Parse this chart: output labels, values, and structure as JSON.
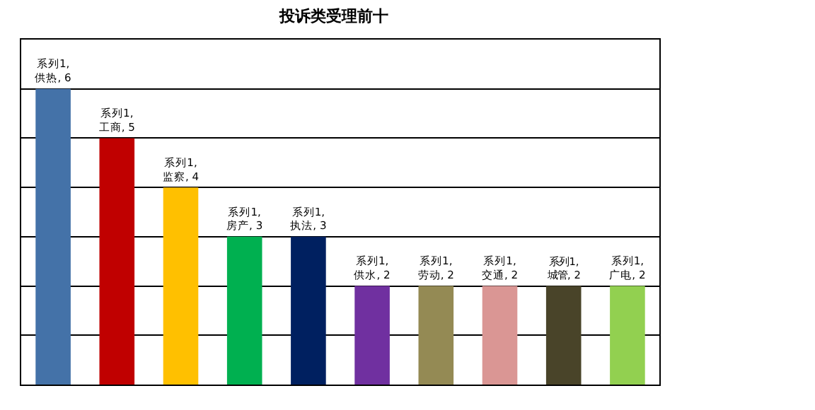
{
  "chart_data": {
    "type": "bar",
    "title": "投诉类受理前十",
    "categories": [
      null,
      null,
      null,
      null,
      null,
      null,
      null,
      null,
      null,
      null
    ],
    "values": [
      6,
      5,
      4,
      3,
      3,
      2,
      2,
      2,
      2,
      2
    ],
    "colors": [
      "#4472a8",
      "#c00000",
      "#ffc000",
      "#00b050",
      "#002060",
      "#7030a0",
      "#948a54",
      "#da9694",
      "#494429",
      "#92d050"
    ],
    "value_labels": [
      "系列1, 供热, 6",
      "系列1, 工商, 5",
      "系列1, 监察, 4",
      "系列1, 房产, 3",
      "系列1, 执法, 3",
      "系列1, 供水, 2",
      "系列1, 劳动, 2",
      "系列1, 交通, 2",
      "系列1, 城管, 2",
      "系列1, 广电, 2"
    ],
    "ylim": [
      0,
      7
    ],
    "yticks": [
      0,
      1,
      2,
      3,
      4,
      5,
      6,
      7
    ],
    "grid": "y",
    "tick_labels": false,
    "legend": false
  }
}
